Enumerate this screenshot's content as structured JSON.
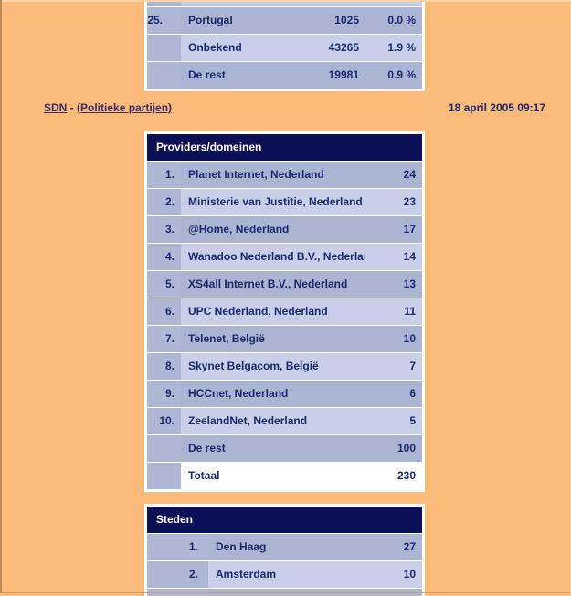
{
  "page": {
    "timestamp": "18 april 2005 09:17",
    "breadcrumb": {
      "site_link": "SDN",
      "separator": " - ",
      "section_link": "(Politieke partijen)"
    }
  },
  "colors": {
    "page_background": "#FCBA7B",
    "table_header_navy": "#0C1057",
    "row_dark_blue": "#ABB5D3",
    "row_light_blue": "#C9CFE8",
    "rank_column_blue": "#AEB7D5",
    "total_row_white": "#FFFFFF",
    "text_navy": "#1A2A6E",
    "link_purple": "#3A2F6B"
  },
  "tables": {
    "countries": {
      "title": "",
      "rows": [
        {
          "rank": "25.",
          "name": "Portugal",
          "count": "1025",
          "percent": "0.0 %"
        },
        {
          "rank": "",
          "name": "Onbekend",
          "count": "43265",
          "percent": "1.9 %"
        },
        {
          "rank": "",
          "name": "De rest",
          "count": "19981",
          "percent": "0.9 %"
        }
      ]
    },
    "providers": {
      "title": "Providers/domeinen",
      "rows": [
        {
          "rank": "1.",
          "name": "Planet Internet, Nederland",
          "value": "24"
        },
        {
          "rank": "2.",
          "name": "Ministerie van Justitie, Nederland",
          "value": "23"
        },
        {
          "rank": "3.",
          "name": "@Home, Nederland",
          "value": "17"
        },
        {
          "rank": "4.",
          "name": "Wanadoo Nederland B.V., Nederland",
          "value": "14"
        },
        {
          "rank": "5.",
          "name": "XS4all Internet B.V., Nederland",
          "value": "13"
        },
        {
          "rank": "6.",
          "name": "UPC Nederland, Nederland",
          "value": "11"
        },
        {
          "rank": "7.",
          "name": "Telenet, België",
          "value": "10"
        },
        {
          "rank": "8.",
          "name": "Skynet Belgacom, België",
          "value": "7"
        },
        {
          "rank": "9.",
          "name": "HCCnet, Nederland",
          "value": "6"
        },
        {
          "rank": "10.",
          "name": "ZeelandNet, Nederland",
          "value": "5"
        },
        {
          "rank": "",
          "name": "De rest",
          "value": "100"
        },
        {
          "rank": "",
          "name": "Totaal",
          "value": "230",
          "is_total": true
        }
      ]
    },
    "cities": {
      "title": "Steden",
      "rows": [
        {
          "rank": "1.",
          "name": "Den Haag",
          "value": "27"
        },
        {
          "rank": "2.",
          "name": "Amsterdam",
          "value": "10"
        }
      ]
    }
  }
}
